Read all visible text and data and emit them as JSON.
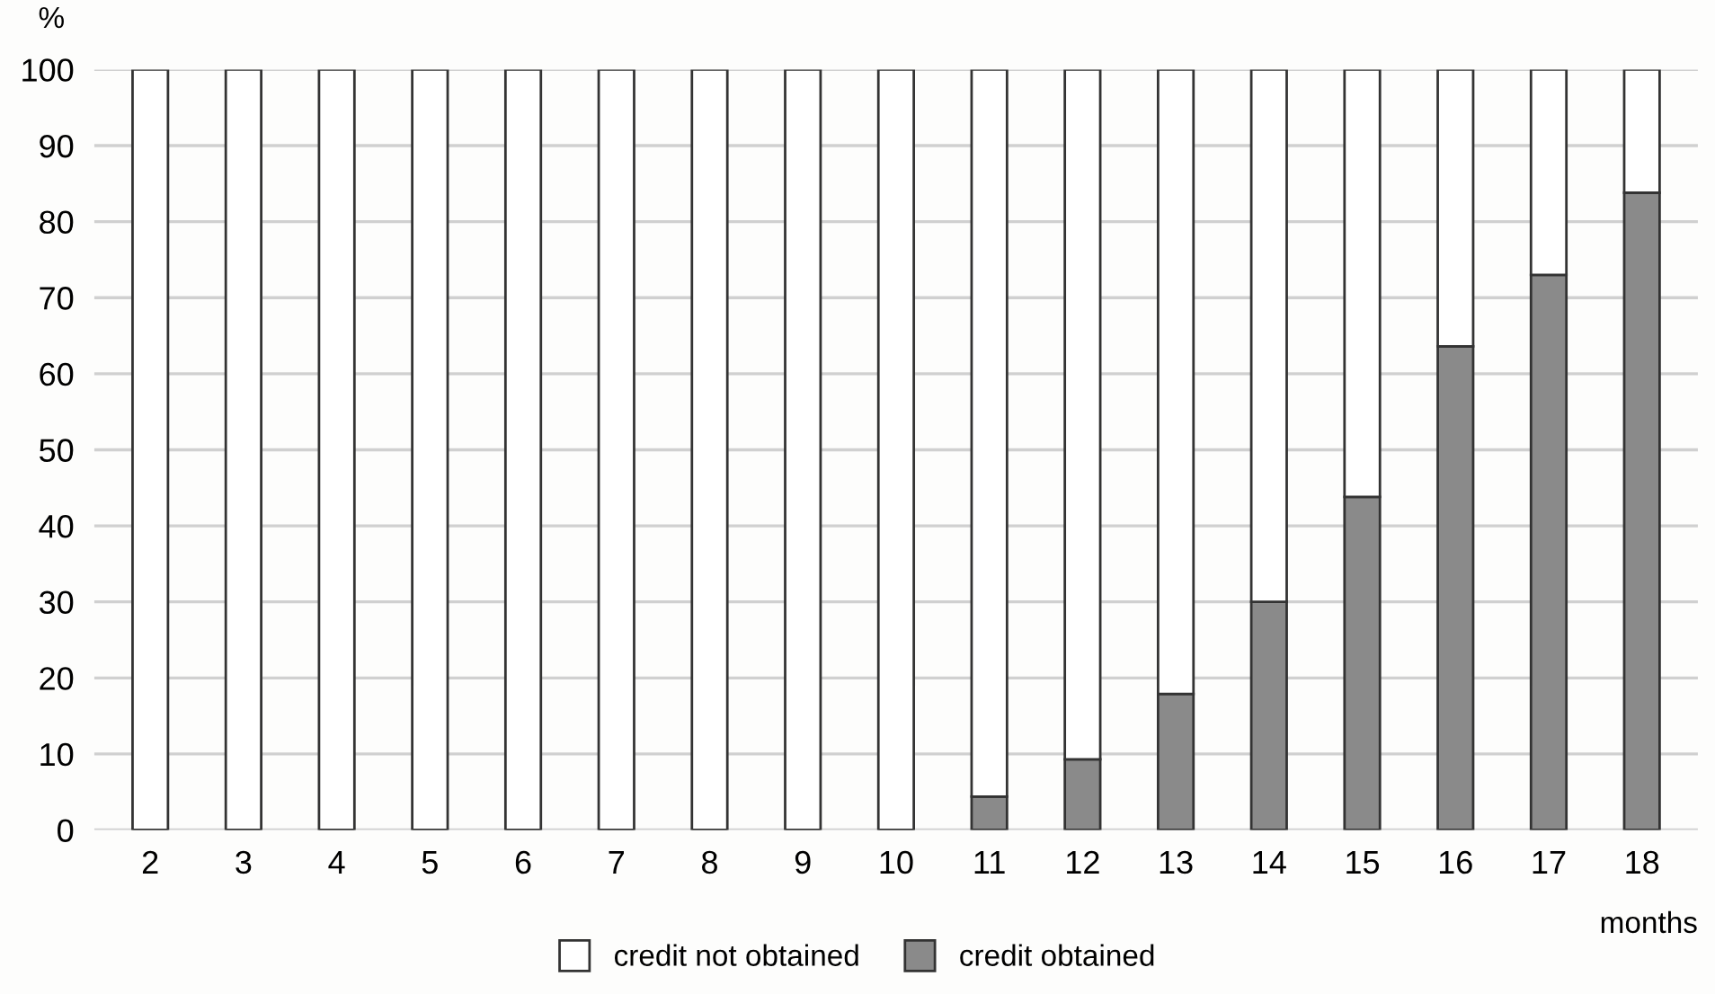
{
  "chart_data": {
    "type": "bar",
    "stacked": true,
    "ylabel": "%",
    "xlabel": "months",
    "categories": [
      "2",
      "3",
      "4",
      "5",
      "6",
      "7",
      "8",
      "9",
      "10",
      "11",
      "12",
      "13",
      "14",
      "15",
      "16",
      "17",
      "18"
    ],
    "series": [
      {
        "name": "credit obtained",
        "color": "#8a8a8a",
        "values": [
          0,
          0,
          0,
          0,
          0,
          0,
          0,
          0,
          0,
          4.4,
          9.3,
          17.9,
          30,
          43.8,
          63.6,
          73,
          83.8
        ]
      },
      {
        "name": "credit not obtained",
        "color": "#ffffff",
        "values": [
          100,
          100,
          100,
          100,
          100,
          100,
          100,
          100,
          100,
          95.6,
          90.7,
          82.1,
          70,
          56.2,
          36.4,
          27,
          16.2
        ]
      }
    ],
    "ylim": [
      0,
      100
    ],
    "yticks": [
      0,
      10,
      20,
      30,
      40,
      50,
      60,
      70,
      80,
      90,
      100
    ],
    "grid": "y",
    "legend": "bottom"
  }
}
